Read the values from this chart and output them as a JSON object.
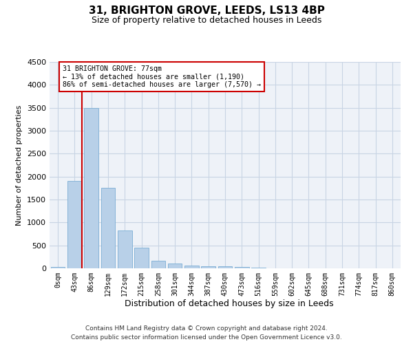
{
  "title": "31, BRIGHTON GROVE, LEEDS, LS13 4BP",
  "subtitle": "Size of property relative to detached houses in Leeds",
  "xlabel": "Distribution of detached houses by size in Leeds",
  "ylabel": "Number of detached properties",
  "bar_color": "#b8d0e8",
  "bar_edge_color": "#7aadd4",
  "background_color": "#eef2f8",
  "grid_color": "#c8d4e4",
  "vline_color": "#cc0000",
  "vline_x": 1.425,
  "annotation_line1": "31 BRIGHTON GROVE: 77sqm",
  "annotation_line2": "← 13% of detached houses are smaller (1,190)",
  "annotation_line3": "86% of semi-detached houses are larger (7,570) →",
  "annotation_box_color": "#ffffff",
  "annotation_box_edge": "#cc0000",
  "categories": [
    "0sqm",
    "43sqm",
    "86sqm",
    "129sqm",
    "172sqm",
    "215sqm",
    "258sqm",
    "301sqm",
    "344sqm",
    "387sqm",
    "430sqm",
    "473sqm",
    "516sqm",
    "559sqm",
    "602sqm",
    "645sqm",
    "688sqm",
    "731sqm",
    "774sqm",
    "817sqm",
    "860sqm"
  ],
  "values": [
    25,
    1900,
    3490,
    1760,
    830,
    450,
    170,
    100,
    60,
    48,
    38,
    35,
    8,
    0,
    0,
    0,
    0,
    0,
    0,
    0,
    0
  ],
  "ylim": [
    0,
    4500
  ],
  "yticks": [
    0,
    500,
    1000,
    1500,
    2000,
    2500,
    3000,
    3500,
    4000,
    4500
  ],
  "footer_line1": "Contains HM Land Registry data © Crown copyright and database right 2024.",
  "footer_line2": "Contains public sector information licensed under the Open Government Licence v3.0."
}
